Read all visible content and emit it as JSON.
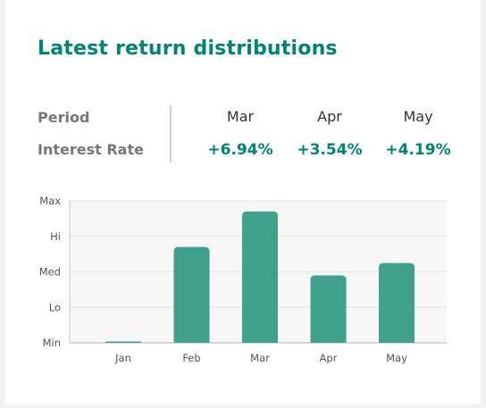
{
  "header": {
    "title": "Latest return distributions"
  },
  "summary": {
    "period_label": "Period",
    "rate_label": "Interest Rate",
    "columns": [
      {
        "month": "Mar",
        "rate": "+6.94%"
      },
      {
        "month": "Apr",
        "rate": "+3.54%"
      },
      {
        "month": "May",
        "rate": "+4.19%"
      }
    ]
  },
  "colors": {
    "accent": "#00856f",
    "bar": "#3fa08c",
    "plot_bg": "#f7f7f7"
  },
  "chart_data": {
    "type": "bar",
    "categories": [
      "Jan",
      "Feb",
      "Mar",
      "Apr",
      "May"
    ],
    "values": [
      0.01,
      2.7,
      3.7,
      1.9,
      2.25
    ],
    "y_ticks": [
      "Min",
      "Lo",
      "Med",
      "Hi",
      "Max"
    ],
    "ylim": [
      0,
      4
    ],
    "grid": true
  }
}
